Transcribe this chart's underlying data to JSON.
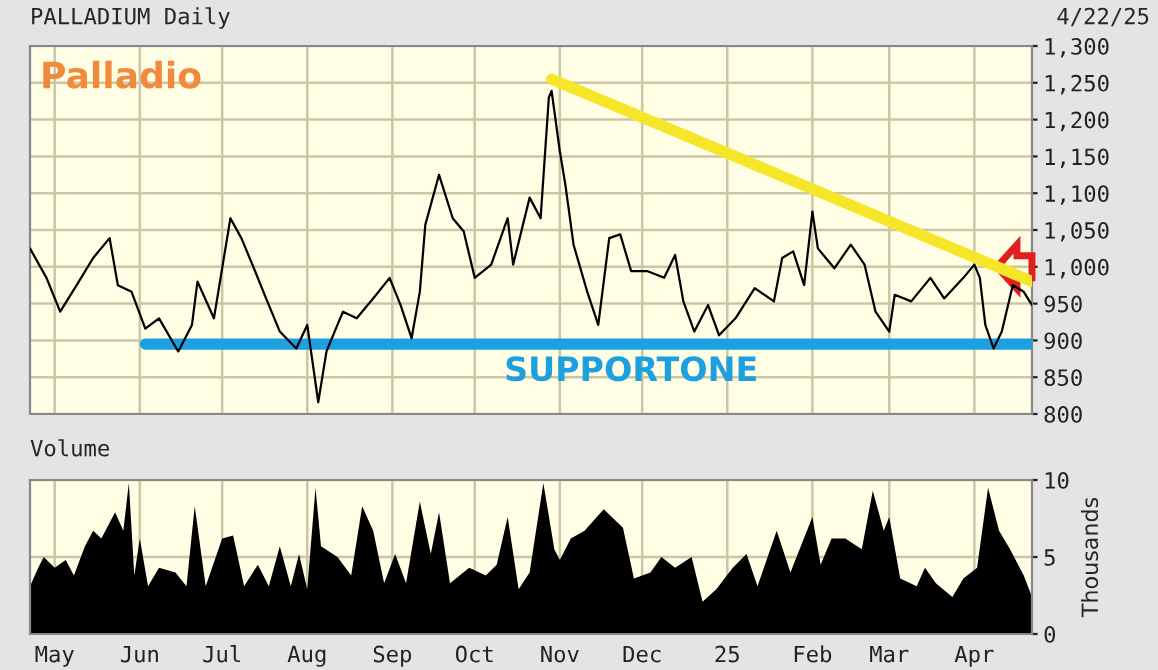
{
  "chart_data": [
    {
      "type": "line",
      "title": "PALLADIUM Daily",
      "subtitle": "4/22/25",
      "annotations": [
        "Palladio",
        "SUPPORTONE"
      ],
      "xlim": [
        "2024-04-22",
        "2025-04-22"
      ],
      "xticks": [
        {
          "value": "2024-05-01",
          "label": null
        },
        {
          "value": "2024-06-01",
          "label": null
        },
        {
          "value": "2024-07-01",
          "label": null
        },
        {
          "value": "2024-08-01",
          "label": null
        },
        {
          "value": "2024-09-01",
          "label": null
        },
        {
          "value": "2024-10-01",
          "label": null
        },
        {
          "value": "2024-11-01",
          "label": null
        },
        {
          "value": "2024-12-01",
          "label": null
        },
        {
          "value": "2025-01-01",
          "label": null
        },
        {
          "value": "2025-02-01",
          "label": null
        },
        {
          "value": "2025-03-01",
          "label": null
        },
        {
          "value": "2025-04-01",
          "label": null
        }
      ],
      "ylim": [
        800,
        1300
      ],
      "yticks": [
        800,
        850,
        900,
        950,
        {
          "value": 1000,
          "label": "1,000"
        },
        {
          "value": 1050,
          "label": "1,050"
        },
        {
          "value": 1100,
          "label": "1,100"
        },
        {
          "value": 1150,
          "label": "1,150"
        },
        {
          "value": 1200,
          "label": "1,200"
        },
        {
          "value": 1250,
          "label": "1,250"
        },
        {
          "value": 1300,
          "label": "1,300"
        }
      ],
      "tick_labels": "y",
      "grid": true,
      "series": [
        {
          "color": "#000000",
          "x": [
            "2024-04-22",
            "2024-04-28",
            "2024-05-03",
            "2024-05-09",
            "2024-05-15",
            "2024-05-21",
            "2024-05-24",
            "2024-05-29",
            "2024-06-03",
            "2024-06-08",
            "2024-06-15",
            "2024-06-20",
            "2024-06-22",
            "2024-06-28",
            "2024-07-04",
            "2024-07-08",
            "2024-07-13",
            "2024-07-17",
            "2024-07-22",
            "2024-07-28",
            "2024-08-01",
            "2024-08-05",
            "2024-08-08",
            "2024-08-14",
            "2024-08-19",
            "2024-08-25",
            "2024-08-31",
            "2024-09-04",
            "2024-09-08",
            "2024-09-11",
            "2024-09-13",
            "2024-09-18",
            "2024-09-23",
            "2024-09-27",
            "2024-10-01",
            "2024-10-07",
            "2024-10-13",
            "2024-10-15",
            "2024-10-21",
            "2024-10-25",
            "2024-10-28",
            "2024-10-29",
            "2024-11-01",
            "2024-11-03",
            "2024-11-06",
            "2024-11-11",
            "2024-11-15",
            "2024-11-19",
            "2024-11-23",
            "2024-11-27",
            "2024-12-03",
            "2024-12-09",
            "2024-12-13",
            "2024-12-16",
            "2024-12-20",
            "2024-12-25",
            "2024-12-29",
            "2025-01-04",
            "2025-01-11",
            "2025-01-18",
            "2025-01-21",
            "2025-01-25",
            "2025-01-29",
            "2025-02-01",
            "2025-02-03",
            "2025-02-09",
            "2025-02-15",
            "2025-02-20",
            "2025-02-24",
            "2025-03-01",
            "2025-03-03",
            "2025-03-09",
            "2025-03-16",
            "2025-03-21",
            "2025-03-28",
            "2025-04-01",
            "2025-04-03",
            "2025-04-05",
            "2025-04-08",
            "2025-04-11",
            "2025-04-15",
            "2025-04-19",
            "2025-04-22"
          ],
          "values": [
            1025,
            985,
            939,
            975,
            1012,
            1039,
            975,
            966,
            916,
            930,
            885,
            921,
            980,
            930,
            1066,
            1039,
            994,
            957,
            912,
            889,
            921,
            816,
            885,
            939,
            930,
            957,
            985,
            948,
            903,
            966,
            1057,
            1125,
            1066,
            1048,
            985,
            1003,
            1066,
            1003,
            1094,
            1066,
            1230,
            1239,
            1157,
            1112,
            1030,
            966,
            921,
            1039,
            1044,
            994,
            994,
            985,
            1016,
            953,
            912,
            948,
            907,
            930,
            971,
            953,
            1012,
            1021,
            975,
            1075,
            1025,
            998,
            1030,
            1003,
            939,
            912,
            962,
            953,
            985,
            957,
            985,
            1003,
            985,
            921,
            889,
            912,
            975,
            966,
            948
          ]
        },
        {
          "color": "#f5e62a",
          "x": [
            "2024-10-29",
            "2025-04-22"
          ],
          "values": [
            1255,
            980
          ]
        },
        {
          "color": "#1ca0e0",
          "x": [
            "2024-06-03",
            "2025-04-22"
          ],
          "values": [
            895,
            895
          ]
        }
      ]
    },
    {
      "type": "area",
      "title": "Volume",
      "ylabel": "Thousands",
      "xlim": [
        "2024-04-22",
        "2025-04-22"
      ],
      "xticks": [
        {
          "value": "2024-05-01",
          "label": "May"
        },
        {
          "value": "2024-06-01",
          "label": "Jun"
        },
        {
          "value": "2024-07-01",
          "label": "Jul"
        },
        {
          "value": "2024-08-01",
          "label": "Aug"
        },
        {
          "value": "2024-09-01",
          "label": "Sep"
        },
        {
          "value": "2024-10-01",
          "label": "Oct"
        },
        {
          "value": "2024-11-01",
          "label": "Nov"
        },
        {
          "value": "2024-12-01",
          "label": "Dec"
        },
        {
          "value": "2025-01-01",
          "label": "25"
        },
        {
          "value": "2025-02-01",
          "label": "Feb"
        },
        {
          "value": "2025-03-01",
          "label": "Mar"
        },
        {
          "value": "2025-04-01",
          "label": "Apr"
        }
      ],
      "ylim": [
        0,
        10
      ],
      "yticks": [
        0,
        5,
        10
      ],
      "grid": true,
      "series": [
        {
          "color": "#000000",
          "x": [
            "2024-04-22",
            "2024-04-25",
            "2024-04-27",
            "2024-05-01",
            "2024-05-05",
            "2024-05-08",
            "2024-05-12",
            "2024-05-15",
            "2024-05-18",
            "2024-05-23",
            "2024-05-26",
            "2024-05-28",
            "2024-05-30",
            "2024-06-01",
            "2024-06-04",
            "2024-06-08",
            "2024-06-14",
            "2024-06-18",
            "2024-06-21",
            "2024-06-25",
            "2024-07-01",
            "2024-07-05",
            "2024-07-09",
            "2024-07-14",
            "2024-07-18",
            "2024-07-22",
            "2024-07-26",
            "2024-07-29",
            "2024-08-01",
            "2024-08-04",
            "2024-08-06",
            "2024-08-12",
            "2024-08-17",
            "2024-08-21",
            "2024-08-25",
            "2024-08-29",
            "2024-09-02",
            "2024-09-06",
            "2024-09-11",
            "2024-09-15",
            "2024-09-18",
            "2024-09-22",
            "2024-09-29",
            "2024-10-05",
            "2024-10-09",
            "2024-10-13",
            "2024-10-17",
            "2024-10-21",
            "2024-10-26",
            "2024-10-30",
            "2024-11-01",
            "2024-11-05",
            "2024-11-10",
            "2024-11-17",
            "2024-11-24",
            "2024-11-28",
            "2024-12-04",
            "2024-12-08",
            "2024-12-13",
            "2024-12-19",
            "2024-12-23",
            "2024-12-28",
            "2025-01-03",
            "2025-01-08",
            "2025-01-12",
            "2025-01-19",
            "2025-01-24",
            "2025-02-01",
            "2025-02-04",
            "2025-02-08",
            "2025-02-13",
            "2025-02-19",
            "2025-02-23",
            "2025-02-27",
            "2025-03-01",
            "2025-03-05",
            "2025-03-11",
            "2025-03-14",
            "2025-03-18",
            "2025-03-24",
            "2025-03-28",
            "2025-04-02",
            "2025-04-06",
            "2025-04-10",
            "2025-04-14",
            "2025-04-19",
            "2025-04-22"
          ],
          "values": [
            3.1,
            4.3,
            5.0,
            4.3,
            4.8,
            3.8,
            5.7,
            6.7,
            6.2,
            7.9,
            6.7,
            9.8,
            3.8,
            6.2,
            3.1,
            4.3,
            4.0,
            3.1,
            8.3,
            3.1,
            6.2,
            6.4,
            3.1,
            4.5,
            3.1,
            5.7,
            3.1,
            5.2,
            2.9,
            9.5,
            5.7,
            5.0,
            3.8,
            8.3,
            6.7,
            3.3,
            5.2,
            3.3,
            8.6,
            5.2,
            7.9,
            3.3,
            4.3,
            3.8,
            4.5,
            7.6,
            2.9,
            4.0,
            9.8,
            5.5,
            4.8,
            6.2,
            6.7,
            8.1,
            6.9,
            3.6,
            4.0,
            5.0,
            4.3,
            5.0,
            2.1,
            2.9,
            4.3,
            5.2,
            3.1,
            6.7,
            4.0,
            7.6,
            4.5,
            6.2,
            6.2,
            5.5,
            9.3,
            6.7,
            7.6,
            3.6,
            3.1,
            4.3,
            3.3,
            2.4,
            3.6,
            4.3,
            9.5,
            6.7,
            5.5,
            3.8,
            2.4
          ]
        }
      ]
    }
  ]
}
